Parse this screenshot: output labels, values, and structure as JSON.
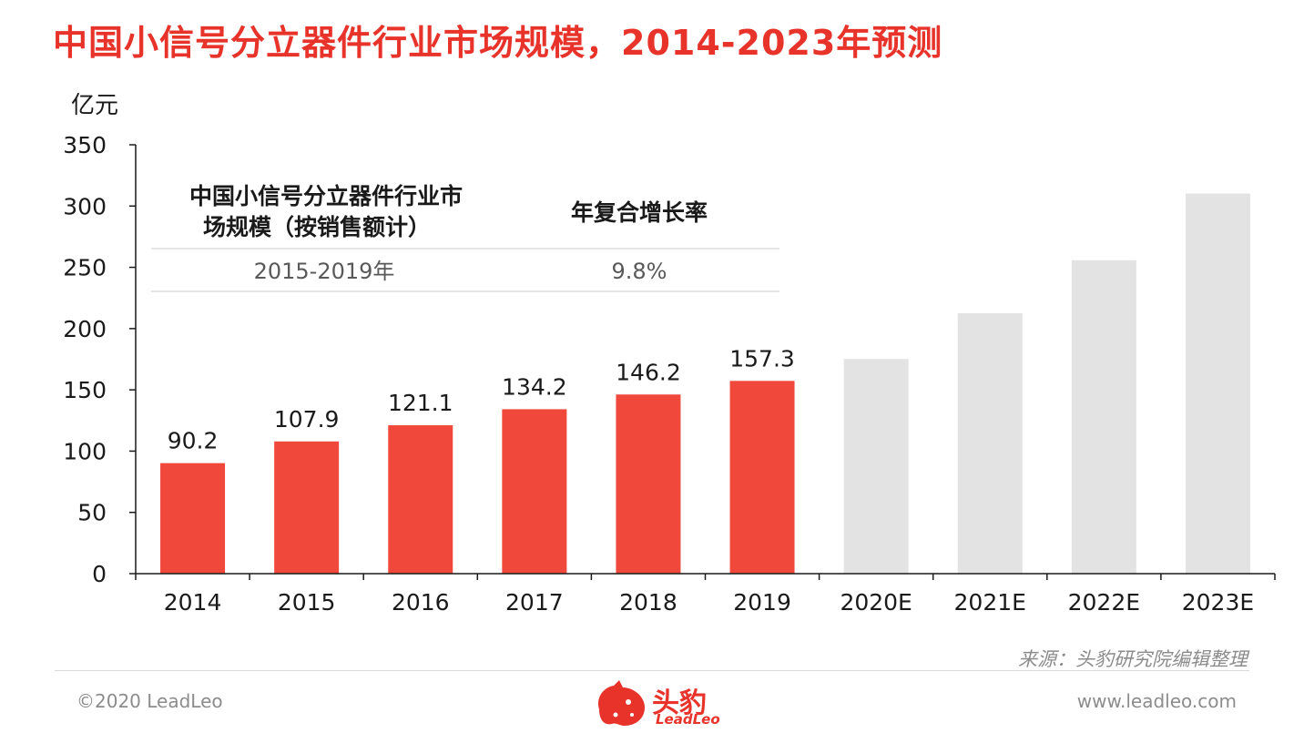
{
  "title": "中国小信号分立器件行业市场规模，2014-2023年预测",
  "colors": {
    "accent": "#e8332b",
    "bar_actual": "#f1483c",
    "bar_forecast": "#e3e3e3",
    "text": "#1a1a1a",
    "muted": "#8c8c8c"
  },
  "chart_data": {
    "type": "bar",
    "ylabel": "亿元",
    "ylim": [
      0,
      350
    ],
    "yticks": [
      0,
      50,
      100,
      150,
      200,
      250,
      300,
      350
    ],
    "categories": [
      "2014",
      "2015",
      "2016",
      "2017",
      "2018",
      "2019",
      "2020E",
      "2021E",
      "2022E",
      "2023E"
    ],
    "values": [
      90.2,
      107.9,
      121.1,
      134.2,
      146.2,
      157.3,
      175.2,
      212.5,
      255.8,
      310.2
    ],
    "data_labels": [
      "90.2",
      "107.9",
      "121.1",
      "134.2",
      "146.2",
      "157.3",
      "",
      "",
      "",
      ""
    ],
    "forecast_from_index": 6,
    "grid": false
  },
  "cagr_table": {
    "col1_header": "中国小信号分立器件行业市场规模（按销售额计）",
    "col2_header": "年复合增长率",
    "row_period": "2015-2019年",
    "row_value": "9.8%"
  },
  "footer": {
    "source": "来源：头豹研究院编辑整理",
    "copyright": "©2020 LeadLeo",
    "website": "www.leadleo.com",
    "logo_cn": "头豹",
    "logo_en": "LeadLeo"
  }
}
